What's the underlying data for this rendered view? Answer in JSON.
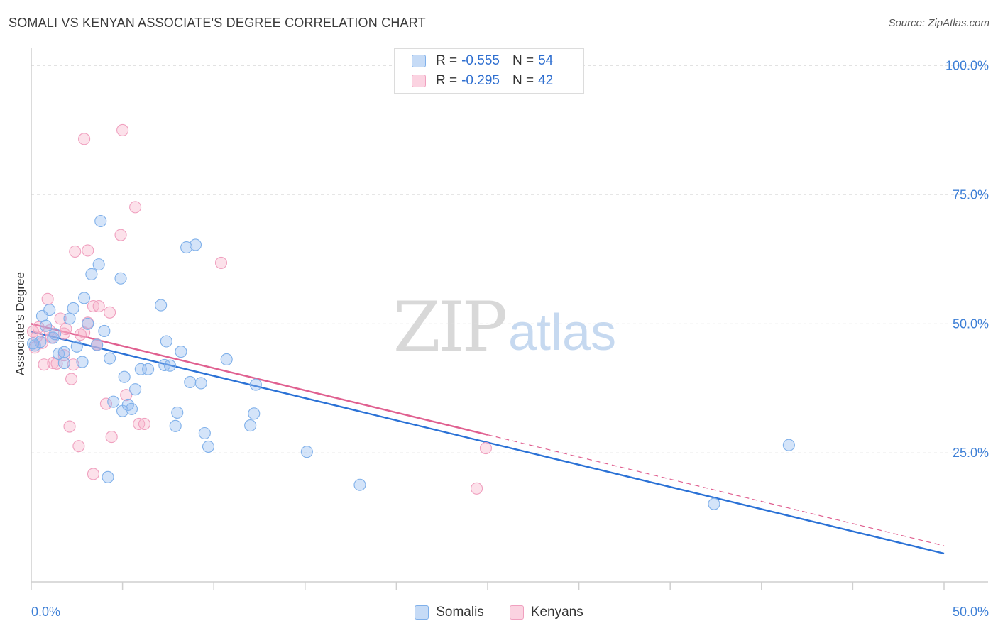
{
  "title": "SOMALI VS KENYAN ASSOCIATE'S DEGREE CORRELATION CHART",
  "source": "Source: ZipAtlas.com",
  "watermark": {
    "zip": "ZIP",
    "atlas": "atlas"
  },
  "colors": {
    "somali": "#7fb0ea",
    "somali_line": "#2b72d6",
    "kenyan": "#f0a0bf",
    "kenyan_line": "#e06090"
  },
  "legend": {
    "rows": [
      {
        "r_label": "R =",
        "r_value": "-0.555",
        "n_label": "N =",
        "n_value": "54"
      },
      {
        "r_label": "R =",
        "r_value": "-0.295",
        "n_label": "N =",
        "n_value": "42"
      }
    ]
  },
  "bottom_legend": {
    "somali": "Somalis",
    "kenyan": "Kenyans"
  },
  "chart_data": {
    "type": "scatter",
    "title": "SOMALI VS KENYAN ASSOCIATE'S DEGREE CORRELATION CHART",
    "xlabel": "",
    "ylabel": "Associate's Degree",
    "xlim": [
      0,
      50
    ],
    "ylim": [
      0,
      102
    ],
    "x_tick_labels": [
      "0.0%",
      "50.0%"
    ],
    "y_ticks": [
      25,
      50,
      75,
      100
    ],
    "y_tick_labels": [
      "25.0%",
      "50.0%",
      "75.0%",
      "100.0%"
    ],
    "series": [
      {
        "name": "Somalis",
        "r": -0.555,
        "n": 54,
        "trend": {
          "x0": 0,
          "y0": 48.5,
          "x1": 50,
          "y1": 5.5
        },
        "points": [
          [
            0.2,
            45.8
          ],
          [
            0.5,
            46.5
          ],
          [
            0.6,
            51.5
          ],
          [
            0.8,
            49.6
          ],
          [
            1.0,
            52.7
          ],
          [
            1.2,
            47.3
          ],
          [
            1.3,
            48.0
          ],
          [
            1.5,
            44.2
          ],
          [
            1.8,
            44.5
          ],
          [
            1.8,
            42.4
          ],
          [
            2.1,
            51.0
          ],
          [
            2.3,
            53.0
          ],
          [
            2.5,
            45.6
          ],
          [
            2.8,
            42.6
          ],
          [
            2.9,
            55.0
          ],
          [
            3.1,
            50.0
          ],
          [
            3.3,
            59.6
          ],
          [
            3.6,
            45.9
          ],
          [
            3.7,
            61.5
          ],
          [
            3.8,
            69.9
          ],
          [
            4.0,
            48.6
          ],
          [
            4.2,
            20.3
          ],
          [
            4.3,
            43.3
          ],
          [
            4.5,
            34.9
          ],
          [
            4.9,
            58.8
          ],
          [
            5.0,
            33.1
          ],
          [
            5.1,
            39.7
          ],
          [
            5.3,
            34.3
          ],
          [
            5.5,
            33.5
          ],
          [
            5.7,
            37.3
          ],
          [
            6.0,
            41.2
          ],
          [
            6.4,
            41.2
          ],
          [
            7.1,
            53.6
          ],
          [
            7.3,
            42.0
          ],
          [
            7.4,
            46.6
          ],
          [
            7.6,
            41.9
          ],
          [
            7.9,
            30.2
          ],
          [
            8.0,
            32.8
          ],
          [
            8.2,
            44.6
          ],
          [
            8.5,
            64.8
          ],
          [
            8.7,
            38.7
          ],
          [
            9.0,
            65.3
          ],
          [
            9.3,
            38.5
          ],
          [
            9.5,
            28.8
          ],
          [
            9.7,
            26.2
          ],
          [
            10.7,
            43.1
          ],
          [
            12.0,
            30.3
          ],
          [
            12.2,
            32.6
          ],
          [
            12.3,
            38.2
          ],
          [
            15.1,
            25.2
          ],
          [
            18.0,
            18.8
          ],
          [
            37.4,
            15.1
          ],
          [
            41.5,
            26.5
          ],
          [
            0.1,
            46.2
          ]
        ]
      },
      {
        "name": "Kenyans",
        "r": -0.295,
        "n": 42,
        "trend_solid": {
          "x0": 0,
          "y0": 50.0,
          "x1": 25,
          "y1": 28.5
        },
        "trend_dashed": {
          "x0": 25,
          "y0": 28.5,
          "x1": 50,
          "y1": 7.0
        },
        "points": [
          [
            0.1,
            48.5
          ],
          [
            0.3,
            47.5
          ],
          [
            0.4,
            49.3
          ],
          [
            0.6,
            46.3
          ],
          [
            0.7,
            42.1
          ],
          [
            0.9,
            54.8
          ],
          [
            1.0,
            48.7
          ],
          [
            1.2,
            42.4
          ],
          [
            1.4,
            42.3
          ],
          [
            1.6,
            51.0
          ],
          [
            1.8,
            43.9
          ],
          [
            1.8,
            48.1
          ],
          [
            1.9,
            49.0
          ],
          [
            2.1,
            30.1
          ],
          [
            2.2,
            39.3
          ],
          [
            2.3,
            42.1
          ],
          [
            2.4,
            64.0
          ],
          [
            2.6,
            26.3
          ],
          [
            2.9,
            85.8
          ],
          [
            2.9,
            48.3
          ],
          [
            3.1,
            50.2
          ],
          [
            3.1,
            64.2
          ],
          [
            3.4,
            53.4
          ],
          [
            3.4,
            20.9
          ],
          [
            3.6,
            45.9
          ],
          [
            3.7,
            53.4
          ],
          [
            4.1,
            34.5
          ],
          [
            4.3,
            52.2
          ],
          [
            4.4,
            28.1
          ],
          [
            4.9,
            67.2
          ],
          [
            5.0,
            87.5
          ],
          [
            5.2,
            36.2
          ],
          [
            5.7,
            72.6
          ],
          [
            5.9,
            30.6
          ],
          [
            6.2,
            30.6
          ],
          [
            10.4,
            61.8
          ],
          [
            24.4,
            18.1
          ],
          [
            24.9,
            25.9
          ],
          [
            0.2,
            45.4
          ],
          [
            1.1,
            47.3
          ],
          [
            2.7,
            47.9
          ],
          [
            3.6,
            46.0
          ]
        ]
      }
    ]
  }
}
